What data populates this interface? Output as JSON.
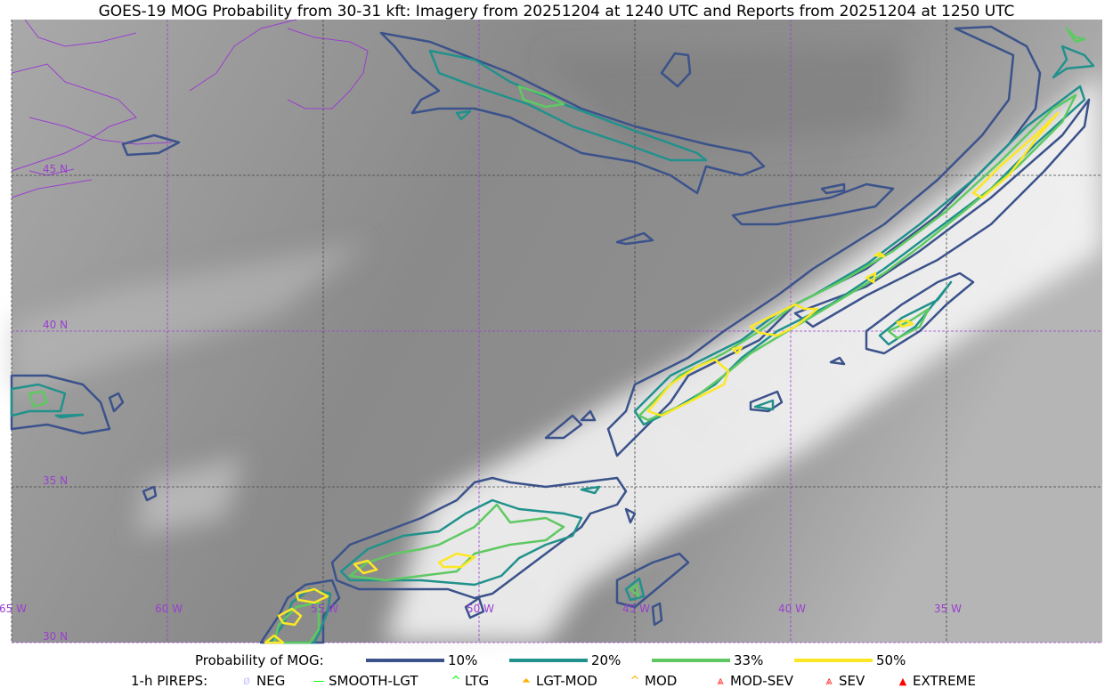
{
  "title": "GOES-19 MOG Probability from 30-31 kft: Imagery from 20251204 at 1240 UTC and Reports from 20251204 at 1250 UTC",
  "map": {
    "longitude_labels": [
      "65 W",
      "60 W",
      "55 W",
      "50 W",
      "45 W",
      "40 W",
      "35 W"
    ],
    "latitude_labels": [
      "45 N",
      "40 N",
      "35 N",
      "30 N"
    ],
    "extent": {
      "lon": [
        -65,
        -30
      ],
      "lat": [
        30,
        50
      ]
    },
    "coastline_color": "#9a3fd0",
    "grid_color": "#9a3fd0"
  },
  "legend": {
    "probability_title": "Probability of MOG:",
    "probability_levels": [
      {
        "label": "10%",
        "color": "#3b528b"
      },
      {
        "label": "20%",
        "color": "#21918c"
      },
      {
        "label": "33%",
        "color": "#5ec962"
      },
      {
        "label": "50%",
        "color": "#fde725"
      }
    ],
    "pireps_title": "1-h PIREPS:",
    "pireps": [
      {
        "label": "NEG",
        "icon": "neg-circle-icon",
        "color": "#c8c8ff"
      },
      {
        "label": "SMOOTH-LGT",
        "icon": "line-icon",
        "color": "#00ff00"
      },
      {
        "label": "LTG",
        "icon": "caret-icon",
        "color": "#00ff00"
      },
      {
        "label": "LGT-MOD",
        "icon": "caret-bar-icon",
        "color": "#ffb000"
      },
      {
        "label": "MOD",
        "icon": "caret-icon",
        "color": "#ffb000"
      },
      {
        "label": "MOD-SEV",
        "icon": "double-caret-bar-icon",
        "color": "#ff2020"
      },
      {
        "label": "SEV",
        "icon": "double-caret-icon",
        "color": "#ff2020"
      },
      {
        "label": "EXTREME",
        "icon": "filled-triangle-icon",
        "color": "#ff0000"
      }
    ]
  }
}
